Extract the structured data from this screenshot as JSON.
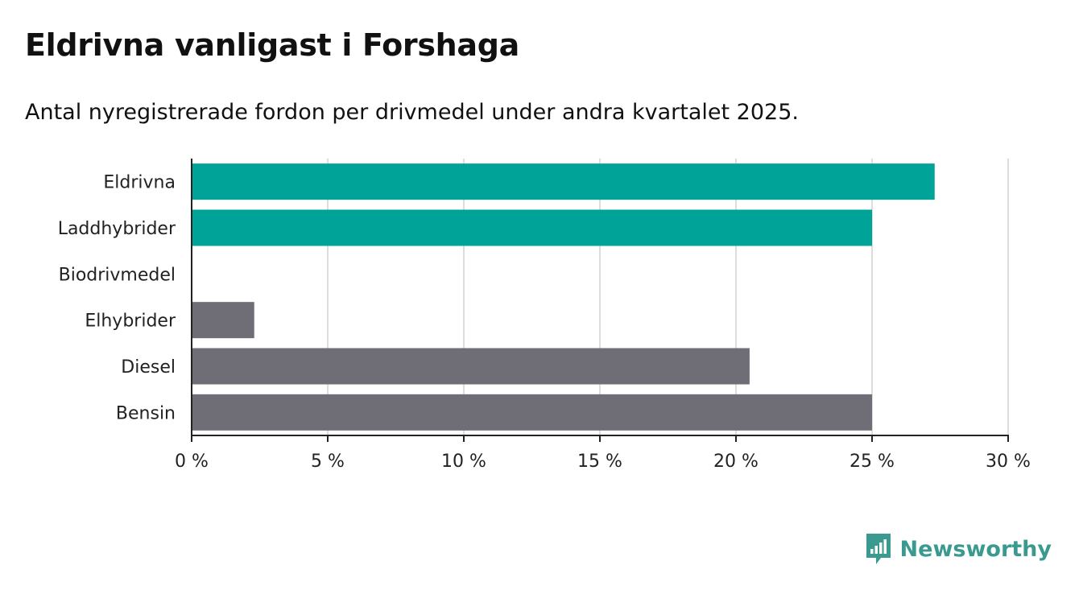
{
  "title": "Eldrivna vanligast i Forshaga",
  "subtitle": "Antal nyregistrerade fordon per drivmedel under andra kvartalet 2025.",
  "brand": {
    "name": "Newsworthy",
    "icon": "newsworthy-logo-icon",
    "color": "#3a9a8f"
  },
  "chart_data": {
    "type": "bar",
    "orientation": "horizontal",
    "title": "Eldrivna vanligast i Forshaga",
    "subtitle": "Antal nyregistrerade fordon per drivmedel under andra kvartalet 2025.",
    "categories": [
      "Eldrivna",
      "Laddhybrider",
      "Biodrivmedel",
      "Elhybrider",
      "Diesel",
      "Bensin"
    ],
    "values": [
      27.3,
      25.0,
      0,
      2.3,
      20.5,
      25.0
    ],
    "colors": [
      "#00a398",
      "#00a398",
      "#6f6e76",
      "#6f6e76",
      "#6f6e76",
      "#6f6e76"
    ],
    "xlim": [
      0,
      30
    ],
    "xticks": [
      0,
      5,
      10,
      15,
      20,
      25,
      30
    ],
    "xtick_labels": [
      "0 %",
      "5 %",
      "10 %",
      "15 %",
      "20 %",
      "25 %",
      "30 %"
    ],
    "xlabel": "",
    "ylabel": "",
    "grid": "vertical",
    "legend": "none"
  }
}
